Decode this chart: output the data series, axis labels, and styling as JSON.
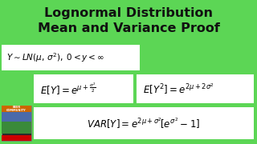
{
  "title_line1": "Lognormal Distribution",
  "title_line2": "Mean and Variance Proof",
  "bg_color": "#5cd655",
  "title_color": "#111111",
  "box_color": "#ffffff",
  "formula1": "$Y \\sim LN(\\mu,\\, \\sigma^2),\\; 0 < y < \\infty$",
  "formula2": "$E[Y] = e^{\\mu + \\frac{\\sigma^2}{2}}$",
  "formula3": "$E[Y^2] = e^{2\\mu + 2\\sigma^2}$",
  "formula4": "$VAR[Y] = e^{2\\mu + \\sigma^2}\\![e^{\\sigma^2} - 1]$",
  "title_fontsize": 11.5,
  "formula_fontsize": 8.5,
  "fig_width": 3.2,
  "fig_height": 1.8,
  "dpi": 100
}
